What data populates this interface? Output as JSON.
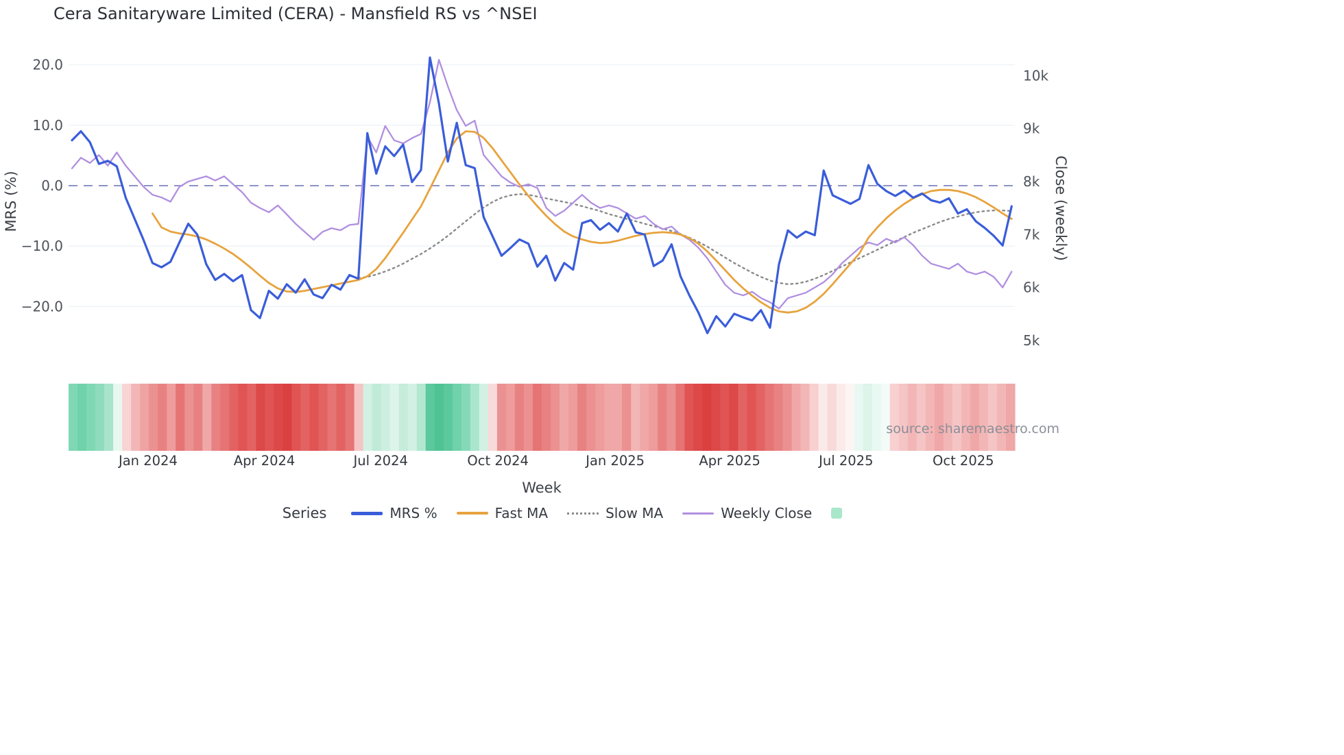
{
  "title": "Cera Sanitaryware Limited (CERA) - Mansfield RS vs ^NSEI",
  "watermark": "source: sharemaestro.com",
  "axes": {
    "left_title": "MRS (%)",
    "right_title": "Close (weekly)",
    "x_title": "Week",
    "left_ticks": [
      {
        "label": "20.0",
        "value": 20
      },
      {
        "label": "10.0",
        "value": 10
      },
      {
        "label": "0.0",
        "value": 0
      },
      {
        "label": "−10.0",
        "value": -10
      },
      {
        "label": "−20.0",
        "value": -20
      }
    ],
    "right_ticks": [
      {
        "label": "10k",
        "value": 10000
      },
      {
        "label": "9k",
        "value": 9000
      },
      {
        "label": "8k",
        "value": 8000
      },
      {
        "label": "7k",
        "value": 7000
      },
      {
        "label": "6k",
        "value": 6000
      },
      {
        "label": "5k",
        "value": 5000
      }
    ],
    "x_ticks": [
      {
        "label": "Jan 2024",
        "week": 8.5
      },
      {
        "label": "Apr 2024",
        "week": 21.5
      },
      {
        "label": "Jul 2024",
        "week": 34.5
      },
      {
        "label": "Oct 2024",
        "week": 47.6
      },
      {
        "label": "Jan 2025",
        "week": 60.7
      },
      {
        "label": "Apr 2025",
        "week": 73.5
      },
      {
        "label": "Jul 2025",
        "week": 86.5
      },
      {
        "label": "Oct 2025",
        "week": 99.6
      }
    ]
  },
  "legend": {
    "title": "Series",
    "items": [
      {
        "label": "MRS %",
        "color": "#3a5dd9",
        "dash": false,
        "thickness": 5
      },
      {
        "label": "Fast MA",
        "color": "#e7a33e",
        "dash": false,
        "thickness": 4
      },
      {
        "label": "Slow MA",
        "color": "#8a8a8a",
        "dash": true,
        "thickness": 3
      },
      {
        "label": "Weekly Close",
        "color": "#b08fe0",
        "dash": false,
        "thickness": 3
      }
    ],
    "swatch_color": "#a9e7cb"
  },
  "chart_data": {
    "type": "line",
    "x_unit": "week index (weekly data, Nov 2023 - Nov 2025)",
    "grid": true,
    "zero_line": {
      "value": 0,
      "axis": "left",
      "style": "dashed",
      "color": "#8c93c8"
    },
    "left_axis": {
      "title": "MRS (%)",
      "range": [
        -28,
        22
      ]
    },
    "right_axis": {
      "title": "Close (weekly)",
      "range": [
        4700,
        10500
      ]
    },
    "series": [
      {
        "name": "MRS %",
        "axis": "left",
        "color": "#3a5dd9",
        "style": "solid",
        "width": 3.2,
        "values": [
          7.5,
          9.0,
          7.2,
          3.6,
          4.1,
          3.2,
          -2.0,
          -5.5,
          -9.0,
          -12.8,
          -13.5,
          -12.6,
          -9.4,
          -6.3,
          -8.1,
          -13.0,
          -15.6,
          -14.6,
          -15.8,
          -14.8,
          -20.6,
          -21.9,
          -17.4,
          -18.7,
          -16.3,
          -17.7,
          -15.5,
          -18.0,
          -18.6,
          -16.4,
          -17.2,
          -14.8,
          -15.4,
          8.7,
          2.0,
          6.5,
          4.9,
          6.8,
          0.6,
          2.6,
          21.2,
          13.6,
          4.0,
          10.4,
          3.4,
          2.9,
          -5.2,
          -8.4,
          -11.6,
          -10.3,
          -8.9,
          -9.6,
          -13.4,
          -11.6,
          -15.7,
          -12.8,
          -13.9,
          -6.2,
          -5.7,
          -7.3,
          -6.2,
          -7.6,
          -4.6,
          -7.7,
          -8.1,
          -13.3,
          -12.4,
          -9.7,
          -15.0,
          -18.2,
          -21.0,
          -24.4,
          -21.6,
          -23.3,
          -21.2,
          -21.8,
          -22.3,
          -20.6,
          -23.5,
          -13.0,
          -7.4,
          -8.6,
          -7.6,
          -8.2,
          2.5,
          -1.6,
          -2.3,
          -3.0,
          -2.2,
          3.4,
          0.3,
          -0.9,
          -1.7,
          -0.8,
          -2.0,
          -1.3,
          -2.4,
          -2.8,
          -2.1,
          -4.6,
          -3.9,
          -5.9,
          -7.0,
          -8.3,
          -9.9,
          -3.4
        ]
      },
      {
        "name": "Fast MA",
        "axis": "left",
        "color": "#e7a33e",
        "style": "solid",
        "width": 2.8,
        "values": [
          null,
          null,
          null,
          null,
          null,
          null,
          null,
          null,
          null,
          -4.6,
          -6.9,
          -7.6,
          -7.9,
          -8.1,
          -8.4,
          -8.9,
          -9.6,
          -10.4,
          -11.3,
          -12.4,
          -13.6,
          -14.9,
          -16.1,
          -17.0,
          -17.5,
          -17.6,
          -17.4,
          -17.1,
          -16.8,
          -16.5,
          -16.2,
          -15.9,
          -15.6,
          -15.0,
          -13.8,
          -12.0,
          -9.9,
          -7.8,
          -5.6,
          -3.4,
          -0.5,
          2.5,
          5.5,
          7.8,
          9.0,
          8.9,
          7.9,
          6.2,
          4.2,
          2.2,
          0.2,
          -1.7,
          -3.4,
          -5.0,
          -6.4,
          -7.6,
          -8.4,
          -8.9,
          -9.3,
          -9.5,
          -9.4,
          -9.1,
          -8.7,
          -8.3,
          -8.0,
          -7.8,
          -7.7,
          -7.8,
          -8.1,
          -8.7,
          -9.6,
          -10.9,
          -12.4,
          -14.0,
          -15.6,
          -17.0,
          -18.2,
          -19.3,
          -20.2,
          -20.8,
          -21.0,
          -20.8,
          -20.2,
          -19.2,
          -17.9,
          -16.3,
          -14.6,
          -12.9,
          -11.2,
          -8.6,
          -6.9,
          -5.4,
          -4.1,
          -3.0,
          -2.1,
          -1.4,
          -0.9,
          -0.7,
          -0.7,
          -0.9,
          -1.3,
          -1.9,
          -2.7,
          -3.6,
          -4.6,
          -5.5
        ]
      },
      {
        "name": "Slow MA",
        "axis": "left",
        "color": "#8a8a8a",
        "style": "dotted",
        "width": 2.4,
        "values": [
          null,
          null,
          null,
          null,
          null,
          null,
          null,
          null,
          null,
          null,
          null,
          null,
          null,
          null,
          null,
          null,
          null,
          null,
          null,
          null,
          null,
          null,
          null,
          null,
          null,
          null,
          null,
          null,
          null,
          null,
          null,
          null,
          -15.3,
          -15.1,
          -14.7,
          -14.2,
          -13.6,
          -12.9,
          -12.1,
          -11.3,
          -10.4,
          -9.4,
          -8.3,
          -7.1,
          -5.9,
          -4.7,
          -3.6,
          -2.7,
          -2.0,
          -1.6,
          -1.4,
          -1.5,
          -1.8,
          -2.1,
          -2.4,
          -2.7,
          -3.0,
          -3.4,
          -3.8,
          -4.2,
          -4.7,
          -5.1,
          -5.5,
          -5.9,
          -6.3,
          -6.7,
          -7.1,
          -7.5,
          -8.0,
          -8.6,
          -9.3,
          -10.1,
          -11.0,
          -11.9,
          -12.8,
          -13.6,
          -14.4,
          -15.1,
          -15.7,
          -16.1,
          -16.3,
          -16.2,
          -15.9,
          -15.4,
          -14.8,
          -14.1,
          -13.4,
          -12.7,
          -12.0,
          -11.3,
          -10.6,
          -9.9,
          -9.2,
          -8.5,
          -7.8,
          -7.2,
          -6.6,
          -6.0,
          -5.5,
          -5.1,
          -4.7,
          -4.4,
          -4.2,
          -4.1,
          -4.1,
          -4.2
        ]
      },
      {
        "name": "Weekly Close",
        "axis": "right",
        "color": "#b08fe0",
        "style": "solid",
        "width": 2.3,
        "values": [
          8250,
          8450,
          8350,
          8500,
          8300,
          8550,
          8300,
          8100,
          7900,
          7750,
          7700,
          7620,
          7900,
          8000,
          8050,
          8100,
          8020,
          8100,
          7950,
          7800,
          7600,
          7500,
          7420,
          7550,
          7380,
          7200,
          7050,
          6900,
          7050,
          7120,
          7080,
          7180,
          7200,
          8850,
          8550,
          9050,
          8780,
          8720,
          8820,
          8900,
          9500,
          10300,
          9800,
          9350,
          9050,
          9150,
          8500,
          8300,
          8100,
          7980,
          7900,
          7950,
          7880,
          7500,
          7350,
          7450,
          7600,
          7750,
          7600,
          7500,
          7550,
          7500,
          7400,
          7300,
          7350,
          7200,
          7100,
          7150,
          7000,
          6900,
          6750,
          6550,
          6300,
          6050,
          5900,
          5850,
          5920,
          5800,
          5720,
          5600,
          5800,
          5850,
          5900,
          6000,
          6100,
          6250,
          6450,
          6600,
          6750,
          6850,
          6800,
          6920,
          6850,
          6950,
          6800,
          6600,
          6450,
          6400,
          6350,
          6450,
          6300,
          6250,
          6300,
          6200,
          6000,
          6300
        ]
      }
    ],
    "heatmap_strip": {
      "description": "weekly relative-strength regime strip (green = positive, red = negative)",
      "colors": [
        "#7fd8b4",
        "#6fd2aa",
        "#7fd8b4",
        "#8edcbd",
        "#a8e4cc",
        "#e8f8f1",
        "#f8d4d4",
        "#f3b6b6",
        "#efa3a3",
        "#eb9191",
        "#e88282",
        "#ee9c9c",
        "#e67474",
        "#eb9191",
        "#e88282",
        "#f0a7a7",
        "#e88282",
        "#e67474",
        "#e36363",
        "#e05454",
        "#e36363",
        "#dd4848",
        "#e05454",
        "#dd4848",
        "#db4040",
        "#e05454",
        "#e36363",
        "#e05454",
        "#e36363",
        "#e67474",
        "#e36363",
        "#e67474",
        "#f5c5c5",
        "#d2f1e4",
        "#bfebd8",
        "#cdefdf",
        "#dcf4ea",
        "#c6edda",
        "#d2f1e4",
        "#b2e7d0",
        "#5cc89d",
        "#4fc394",
        "#5cc89d",
        "#6fd2aa",
        "#86d9b8",
        "#aae5cd",
        "#d2f1e4",
        "#f8dada",
        "#eb9191",
        "#ee9c9c",
        "#e88282",
        "#eb9191",
        "#e67474",
        "#e88282",
        "#eb9191",
        "#f0a7a7",
        "#ee9c9c",
        "#e88282",
        "#eb9191",
        "#ee9c9c",
        "#f0a7a7",
        "#f0a7a7",
        "#eb9191",
        "#f3b6b6",
        "#f0a7a7",
        "#ee9c9c",
        "#e88282",
        "#eb9191",
        "#e67474",
        "#e05454",
        "#dd4848",
        "#db4040",
        "#dd4848",
        "#e05454",
        "#dd4848",
        "#e36363",
        "#e05454",
        "#e36363",
        "#e67474",
        "#e88282",
        "#eb9191",
        "#f0a7a7",
        "#f3b6b6",
        "#f8d0d0",
        "#fbeaea",
        "#f8dada",
        "#fbeaea",
        "#fdf4f4",
        "#e9f8f2",
        "#dcf4ea",
        "#e9f8f2",
        "#f2fbf7",
        "#f8d0d0",
        "#f5c5c5",
        "#f3b6b6",
        "#f5c5c5",
        "#f3b6b6",
        "#f0a7a7",
        "#f3b6b6",
        "#f5c5c5",
        "#f3b6b6",
        "#f0a7a7",
        "#f3b6b6",
        "#f5c5c5",
        "#f3b6b6",
        "#f0a7a7"
      ]
    }
  }
}
